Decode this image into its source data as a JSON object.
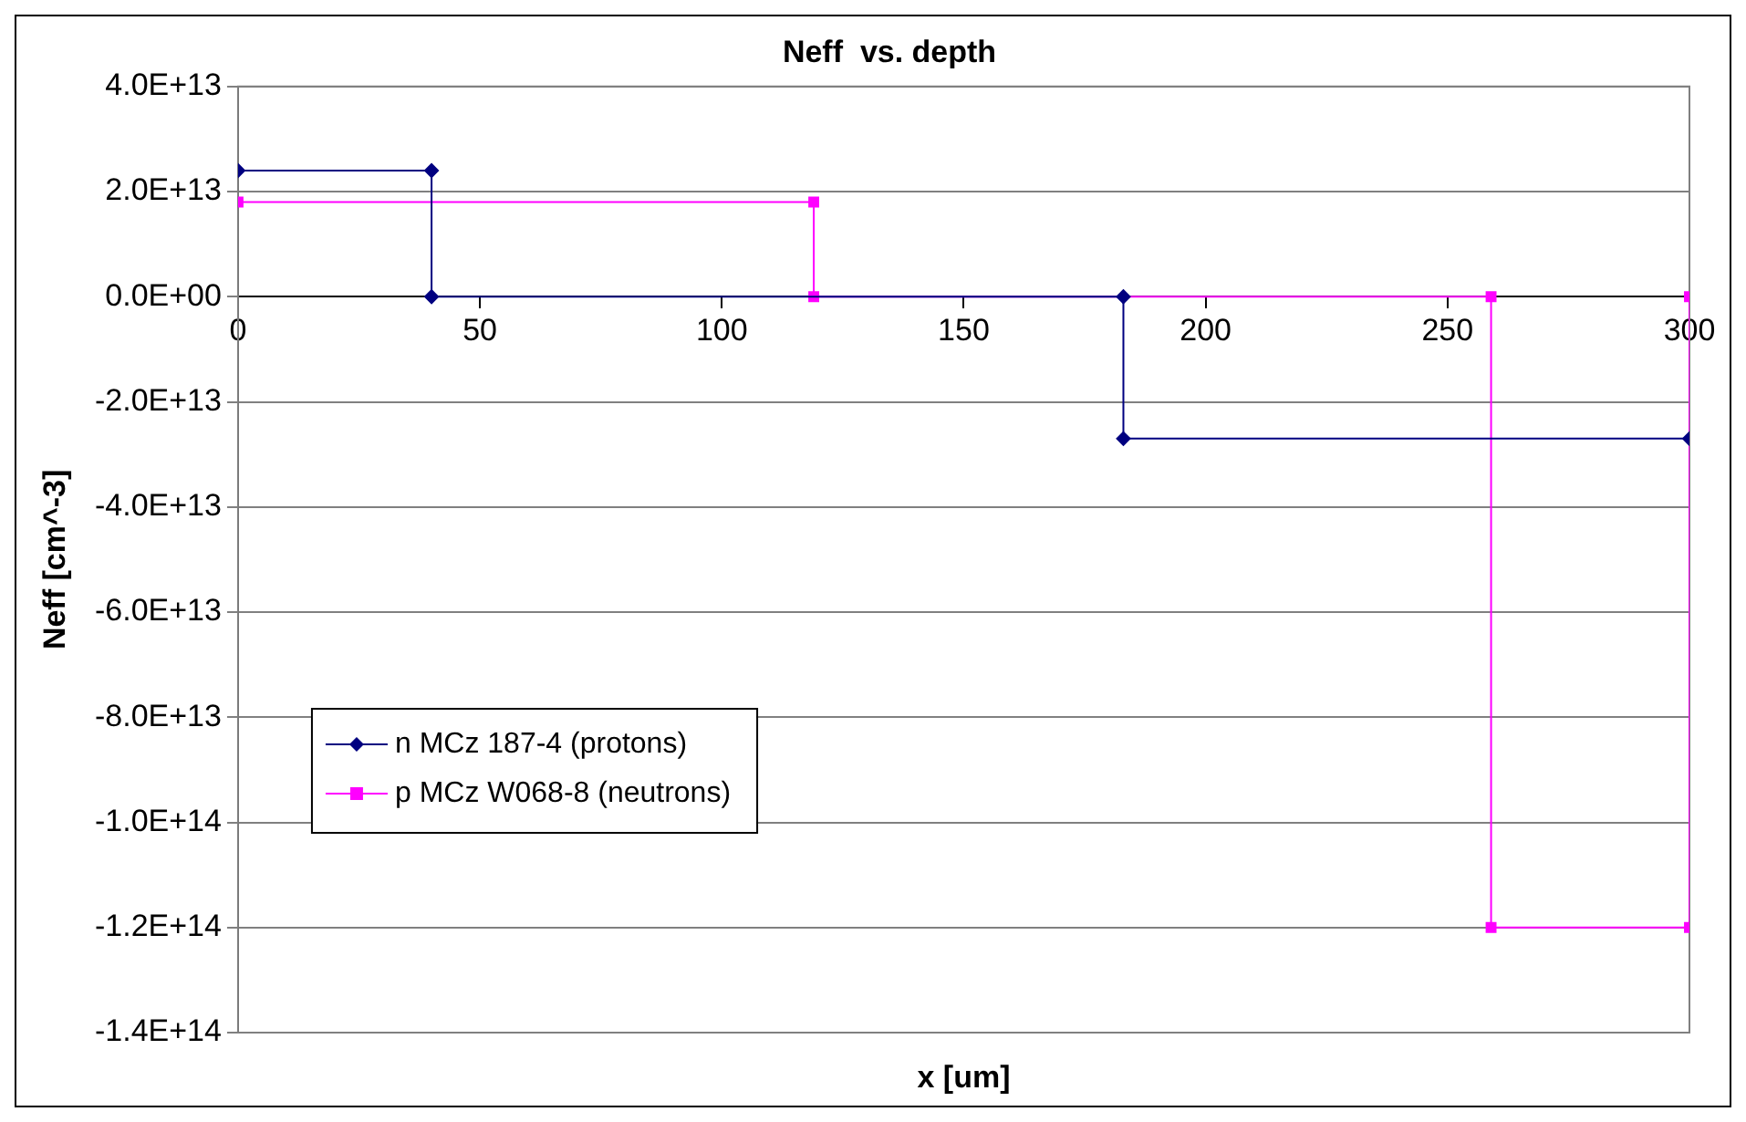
{
  "chart_data": {
    "type": "line",
    "title": "Neff  vs. depth",
    "xlabel": "x [um]",
    "ylabel": "Neff [cm^-3]",
    "series": [
      {
        "name": "n MCz 187-4 (protons)",
        "color": "#000080",
        "marker": "diamond",
        "x": [
          0,
          40,
          40,
          183,
          183,
          300
        ],
        "values": [
          24000000000000.0,
          24000000000000.0,
          0,
          0,
          -27000000000000.0,
          -27000000000000.0
        ]
      },
      {
        "name": "p MCz W068-8 (neutrons)",
        "color": "#ff00ff",
        "marker": "square",
        "x": [
          0,
          119,
          119,
          259,
          259,
          300,
          300
        ],
        "values": [
          18000000000000.0,
          18000000000000.0,
          0,
          0,
          -120000000000000.0,
          -120000000000000.0,
          0
        ]
      }
    ],
    "xlim": [
      0,
      300
    ],
    "xticks": [
      0,
      50,
      100,
      150,
      200,
      250,
      300
    ],
    "ylim": [
      -140000000000000.0,
      40000000000000.0
    ],
    "yticks": [
      {
        "value": 40000000000000.0,
        "label": "4.0E+13"
      },
      {
        "value": 20000000000000.0,
        "label": "2.0E+13"
      },
      {
        "value": 0,
        "label": "0.0E+00"
      },
      {
        "value": -20000000000000.0,
        "label": "-2.0E+13"
      },
      {
        "value": -40000000000000.0,
        "label": "-4.0E+13"
      },
      {
        "value": -60000000000000.0,
        "label": "-6.0E+13"
      },
      {
        "value": -80000000000000.0,
        "label": "-8.0E+13"
      },
      {
        "value": -100000000000000.0,
        "label": "-1.0E+14"
      },
      {
        "value": -120000000000000.0,
        "label": "-1.2E+14"
      },
      {
        "value": -140000000000000.0,
        "label": "-1.4E+14"
      }
    ],
    "grid": "y",
    "legend": "bottom left",
    "line_style": "solid"
  }
}
